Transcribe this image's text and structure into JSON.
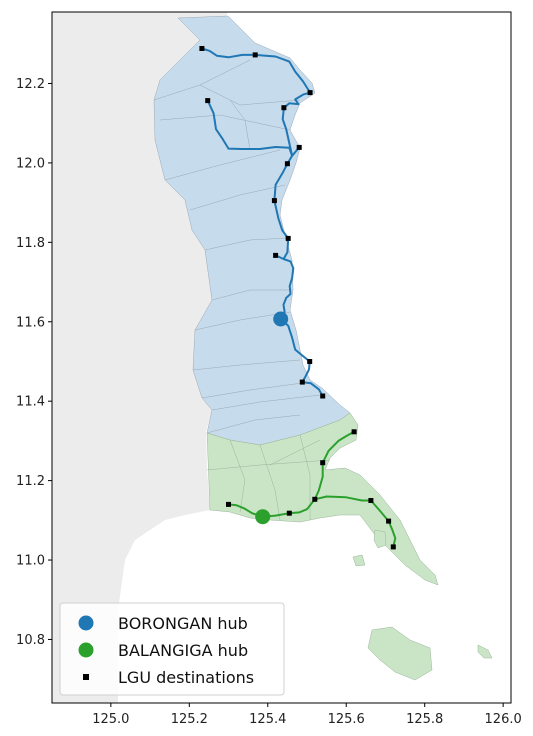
{
  "chart_data": {
    "type": "map",
    "xlim": [
      124.85,
      126.02
    ],
    "ylim": [
      10.64,
      12.38
    ],
    "x_ticks": [
      {
        "value": 125.0,
        "label": "125.0"
      },
      {
        "value": 125.2,
        "label": "125.2"
      },
      {
        "value": 125.4,
        "label": "125.4"
      },
      {
        "value": 125.6,
        "label": "125.6"
      },
      {
        "value": 125.8,
        "label": "125.8"
      },
      {
        "value": 126.0,
        "label": "126.0"
      }
    ],
    "y_ticks": [
      {
        "value": 10.8,
        "label": "10.8"
      },
      {
        "value": 11.0,
        "label": "11.0"
      },
      {
        "value": 11.2,
        "label": "11.2"
      },
      {
        "value": 11.4,
        "label": "11.4"
      },
      {
        "value": 11.6,
        "label": "11.6"
      },
      {
        "value": 11.8,
        "label": "11.8"
      },
      {
        "value": 12.0,
        "label": "12.0"
      },
      {
        "value": 12.2,
        "label": "12.2"
      }
    ],
    "legend": {
      "placement": "bottom-left",
      "entries": [
        {
          "label": "BORONGAN hub",
          "marker": "circle",
          "color": "#1f77b4"
        },
        {
          "label": "BALANGIGA hub",
          "marker": "circle",
          "color": "#2ca02c"
        },
        {
          "label": "LGU destinations",
          "marker": "square",
          "color": "#000000"
        }
      ]
    },
    "colors": {
      "borongan_region": "#c6dbec",
      "balangiga_region": "#c9e5c6",
      "background_land": "#ececec",
      "borongan_route": "#1f77b4",
      "balangiga_route": "#2ca02c"
    },
    "hubs": [
      {
        "name": "BORONGAN hub",
        "lon": 125.433,
        "lat": 11.607,
        "color": "#1f77b4"
      },
      {
        "name": "BALANGIGA hub",
        "lon": 125.387,
        "lat": 11.109,
        "color": "#2ca02c"
      }
    ],
    "lgu_destinations": [
      {
        "lon": 125.232,
        "lat": 12.288
      },
      {
        "lon": 125.368,
        "lat": 12.272
      },
      {
        "lon": 125.508,
        "lat": 12.177
      },
      {
        "lon": 125.247,
        "lat": 12.157
      },
      {
        "lon": 125.441,
        "lat": 12.139
      },
      {
        "lon": 125.48,
        "lat": 12.039
      },
      {
        "lon": 125.45,
        "lat": 11.998
      },
      {
        "lon": 125.417,
        "lat": 11.905
      },
      {
        "lon": 125.452,
        "lat": 11.81
      },
      {
        "lon": 125.42,
        "lat": 11.767
      },
      {
        "lon": 125.507,
        "lat": 11.5
      },
      {
        "lon": 125.488,
        "lat": 11.448
      },
      {
        "lon": 125.54,
        "lat": 11.413
      },
      {
        "lon": 125.62,
        "lat": 11.323
      },
      {
        "lon": 125.54,
        "lat": 11.245
      },
      {
        "lon": 125.52,
        "lat": 11.153
      },
      {
        "lon": 125.663,
        "lat": 11.15
      },
      {
        "lon": 125.3,
        "lat": 11.14
      },
      {
        "lon": 125.455,
        "lat": 11.118
      },
      {
        "lon": 125.708,
        "lat": 11.098
      },
      {
        "lon": 125.72,
        "lat": 11.033
      }
    ],
    "borongan_routes": [
      [
        [
          125.433,
          11.607
        ],
        [
          125.443,
          11.625
        ],
        [
          125.44,
          11.643
        ],
        [
          125.447,
          11.66
        ],
        [
          125.458,
          11.67
        ],
        [
          125.456,
          11.69
        ],
        [
          125.462,
          11.71
        ],
        [
          125.465,
          11.735
        ],
        [
          125.458,
          11.752
        ],
        [
          125.44,
          11.758
        ],
        [
          125.42,
          11.767
        ]
      ],
      [
        [
          125.44,
          11.758
        ],
        [
          125.45,
          11.775
        ],
        [
          125.452,
          11.81
        ],
        [
          125.437,
          11.83
        ],
        [
          125.427,
          11.86
        ],
        [
          125.417,
          11.905
        ],
        [
          125.42,
          11.945
        ],
        [
          125.438,
          11.975
        ],
        [
          125.45,
          11.998
        ],
        [
          125.462,
          12.018
        ],
        [
          125.48,
          12.039
        ]
      ],
      [
        [
          125.462,
          12.018
        ],
        [
          125.455,
          12.038
        ],
        [
          125.42,
          12.04
        ],
        [
          125.38,
          12.035
        ],
        [
          125.335,
          12.035
        ],
        [
          125.3,
          12.036
        ],
        [
          125.285,
          12.06
        ],
        [
          125.268,
          12.085
        ],
        [
          125.262,
          12.125
        ],
        [
          125.247,
          12.157
        ]
      ],
      [
        [
          125.462,
          12.018
        ],
        [
          125.455,
          12.05
        ],
        [
          125.447,
          12.085
        ],
        [
          125.438,
          12.11
        ],
        [
          125.441,
          12.139
        ],
        [
          125.455,
          12.15
        ],
        [
          125.478,
          12.148
        ],
        [
          125.47,
          12.16
        ],
        [
          125.49,
          12.172
        ],
        [
          125.508,
          12.177
        ]
      ],
      [
        [
          125.508,
          12.177
        ],
        [
          125.49,
          12.205
        ],
        [
          125.47,
          12.23
        ],
        [
          125.455,
          12.255
        ],
        [
          125.42,
          12.268
        ],
        [
          125.395,
          12.27
        ],
        [
          125.368,
          12.272
        ],
        [
          125.335,
          12.272
        ],
        [
          125.3,
          12.266
        ],
        [
          125.27,
          12.27
        ],
        [
          125.252,
          12.282
        ],
        [
          125.232,
          12.288
        ]
      ],
      [
        [
          125.433,
          11.607
        ],
        [
          125.452,
          11.59
        ],
        [
          125.462,
          11.56
        ],
        [
          125.47,
          11.53
        ],
        [
          125.488,
          11.515
        ],
        [
          125.507,
          11.5
        ],
        [
          125.505,
          11.48
        ],
        [
          125.495,
          11.46
        ],
        [
          125.488,
          11.448
        ],
        [
          125.51,
          11.445
        ],
        [
          125.53,
          11.43
        ],
        [
          125.54,
          11.413
        ]
      ]
    ],
    "balangiga_routes": [
      [
        [
          125.387,
          11.109
        ],
        [
          125.36,
          11.118
        ],
        [
          125.34,
          11.13
        ],
        [
          125.32,
          11.138
        ],
        [
          125.3,
          11.14
        ]
      ],
      [
        [
          125.387,
          11.109
        ],
        [
          125.42,
          11.112
        ],
        [
          125.455,
          11.118
        ],
        [
          125.48,
          11.12
        ],
        [
          125.5,
          11.128
        ],
        [
          125.52,
          11.153
        ]
      ],
      [
        [
          125.52,
          11.153
        ],
        [
          125.53,
          11.175
        ],
        [
          125.54,
          11.21
        ],
        [
          125.54,
          11.245
        ],
        [
          125.555,
          11.275
        ],
        [
          125.58,
          11.3
        ],
        [
          125.6,
          11.312
        ],
        [
          125.62,
          11.323
        ]
      ],
      [
        [
          125.52,
          11.153
        ],
        [
          125.55,
          11.16
        ],
        [
          125.6,
          11.158
        ],
        [
          125.64,
          11.15
        ],
        [
          125.663,
          11.15
        ],
        [
          125.685,
          11.125
        ],
        [
          125.708,
          11.098
        ],
        [
          125.718,
          11.075
        ],
        [
          125.725,
          11.055
        ],
        [
          125.72,
          11.033
        ]
      ]
    ]
  }
}
